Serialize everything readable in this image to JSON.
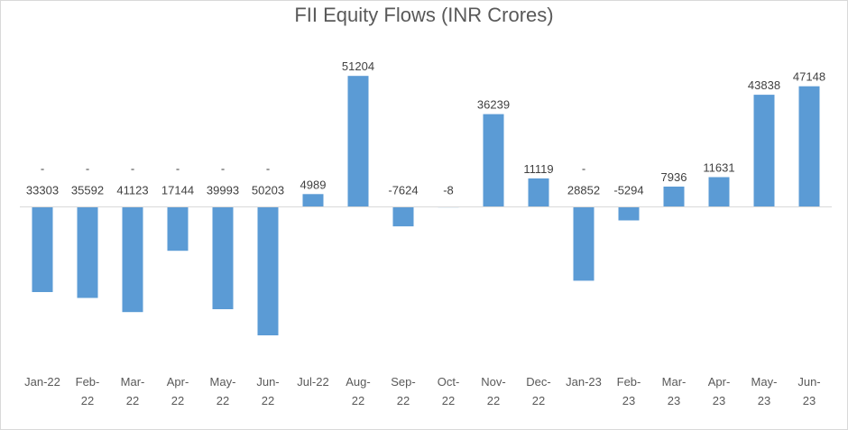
{
  "chart_data": {
    "type": "bar",
    "title": "FII Equity Flows (INR Crores)",
    "xlabel": "",
    "ylabel": "",
    "ylim": [
      -60000,
      60000
    ],
    "grid": false,
    "legend": "none",
    "color": "#5b9bd5",
    "categories": [
      [
        "Jan-22"
      ],
      [
        "Feb-",
        "22"
      ],
      [
        "Mar-",
        "22"
      ],
      [
        "Apr-",
        "22"
      ],
      [
        "May-",
        "22"
      ],
      [
        "Jun-",
        "22"
      ],
      [
        "Jul-22"
      ],
      [
        "Aug-",
        "22"
      ],
      [
        "Sep-",
        "22"
      ],
      [
        "Oct-",
        "22"
      ],
      [
        "Nov-",
        "22"
      ],
      [
        "Dec-",
        "22"
      ],
      [
        "Jan-23"
      ],
      [
        "Feb-",
        "23"
      ],
      [
        "Mar-",
        "23"
      ],
      [
        "Apr-",
        "23"
      ],
      [
        "May-",
        "23"
      ],
      [
        "Jun-",
        "23"
      ]
    ],
    "values": [
      -33303,
      -35592,
      -41123,
      -17144,
      -39993,
      -50203,
      4989,
      51204,
      -7624,
      -8,
      36239,
      11119,
      -28852,
      -5294,
      7936,
      11631,
      43838,
      47148
    ],
    "data_labels": [
      {
        "dash": "-",
        "text": "33303"
      },
      {
        "dash": "-",
        "text": "35592"
      },
      {
        "dash": "-",
        "text": "41123"
      },
      {
        "dash": "-",
        "text": "17144"
      },
      {
        "dash": "-",
        "text": "39993"
      },
      {
        "dash": "-",
        "text": "50203"
      },
      {
        "dash": "",
        "text": "4989"
      },
      {
        "dash": "",
        "text": "51204"
      },
      {
        "dash": "",
        "text": "-7624"
      },
      {
        "dash": "",
        "text": "-8"
      },
      {
        "dash": "",
        "text": "36239"
      },
      {
        "dash": "",
        "text": "11119"
      },
      {
        "dash": "-",
        "text": "28852"
      },
      {
        "dash": "",
        "text": "-5294"
      },
      {
        "dash": "",
        "text": "7936"
      },
      {
        "dash": "",
        "text": "11631"
      },
      {
        "dash": "",
        "text": "43838"
      },
      {
        "dash": "",
        "text": "47148"
      }
    ]
  }
}
